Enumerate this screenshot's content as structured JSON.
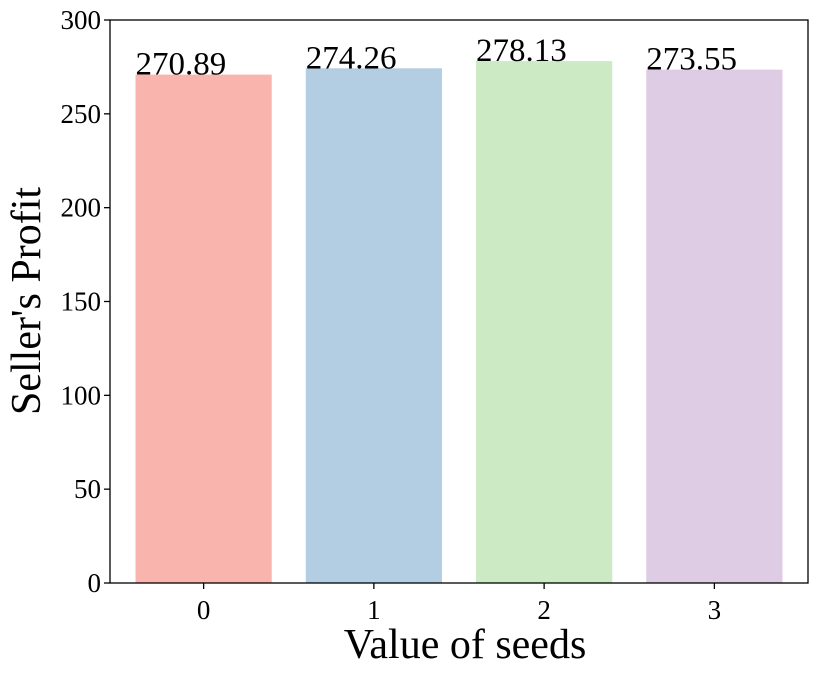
{
  "chart_data": {
    "type": "bar",
    "categories": [
      "0",
      "1",
      "2",
      "3"
    ],
    "values": [
      270.89,
      274.26,
      278.13,
      273.55
    ],
    "data_labels": [
      "270.89",
      "274.26",
      "278.13",
      "273.55"
    ],
    "xlabel": "Value of seeds",
    "ylabel": "Seller's Profit",
    "ylim": [
      0,
      300
    ],
    "yticks": [
      "0",
      "50",
      "100",
      "150",
      "200",
      "250",
      "300"
    ],
    "grid": false,
    "colors": [
      "#fab4ae",
      "#b3cde3",
      "#ccebc5",
      "#decbe4"
    ]
  }
}
